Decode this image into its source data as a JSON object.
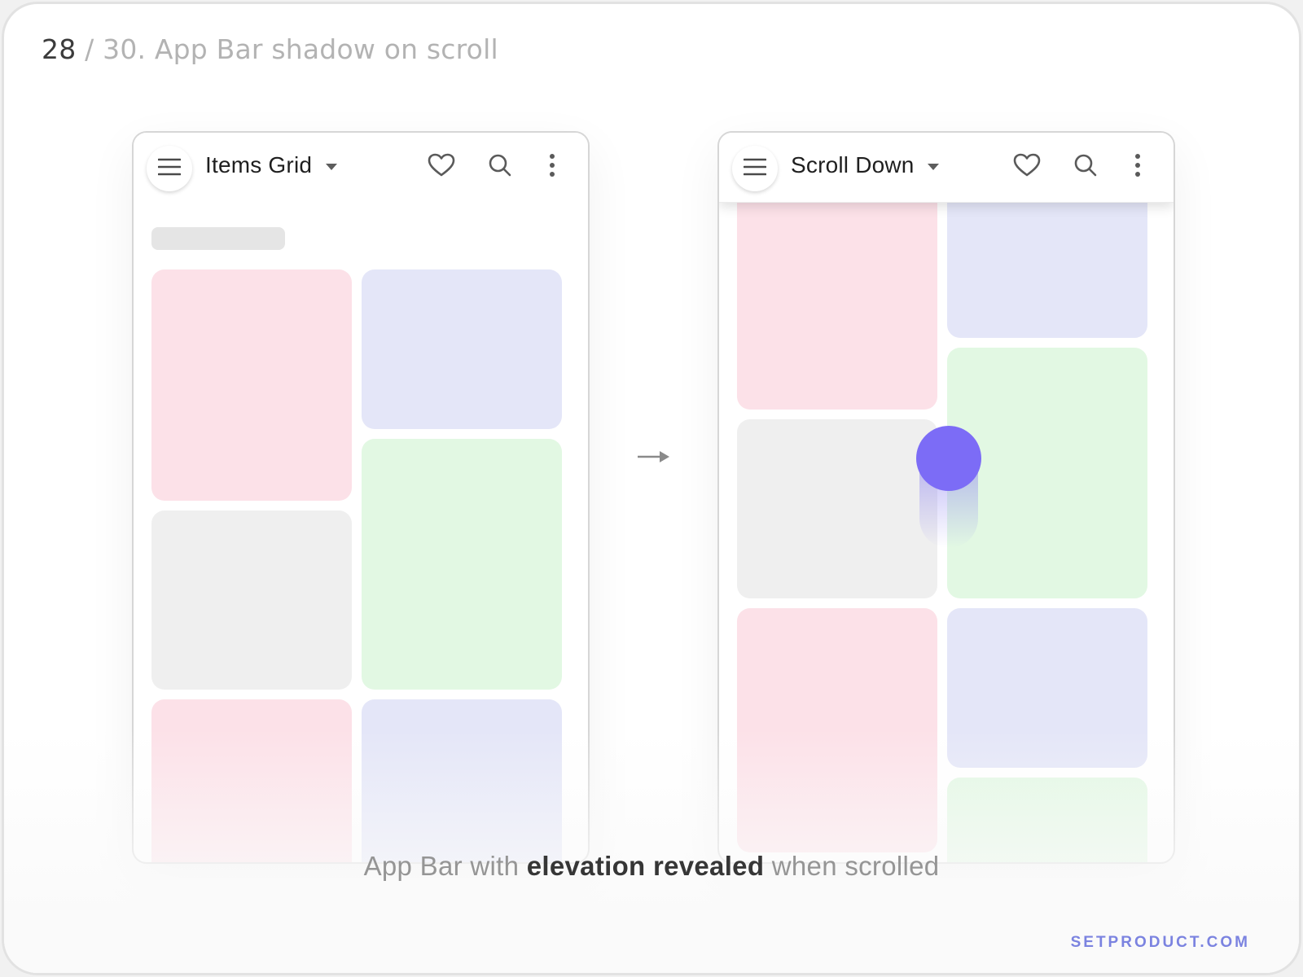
{
  "page": {
    "slide_number": "28",
    "slide_title": "/ 30. App Bar shadow on scroll"
  },
  "left_screen": {
    "appbar": {
      "title": "Items Grid",
      "icons": [
        "menu-icon",
        "chevron-down-icon",
        "heart-icon",
        "search-icon",
        "more-vert-icon"
      ],
      "elevated": false
    }
  },
  "right_screen": {
    "appbar": {
      "title": "Scroll Down",
      "icons": [
        "menu-icon",
        "chevron-down-icon",
        "heart-icon",
        "search-icon",
        "more-vert-icon"
      ],
      "elevated": true
    }
  },
  "colors": {
    "tile_pink": "#fce1e8",
    "tile_blue": "#e4e6f8",
    "tile_green": "#e2f8e3",
    "tile_gray": "#efefef",
    "touch_indicator": "#7c6cf6",
    "brand": "#7b83e0"
  },
  "caption": {
    "part1": "App Bar with ",
    "part2": "elevation revealed",
    "part3": " when scrolled"
  },
  "brand": "SETPRODUCT.COM"
}
